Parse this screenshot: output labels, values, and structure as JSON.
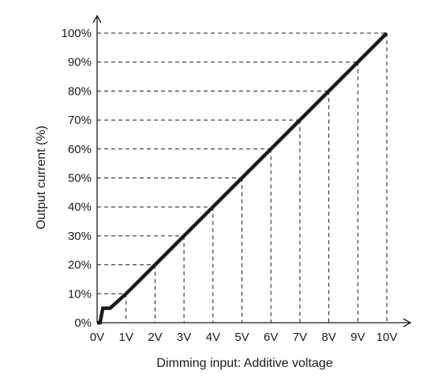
{
  "chart_data": {
    "type": "line",
    "xlabel": "Dimming input: Additive voltage",
    "ylabel": "Output current (%)",
    "x_ticks": [
      "0V",
      "1V",
      "2V",
      "3V",
      "4V",
      "5V",
      "6V",
      "7V",
      "8V",
      "9V",
      "10V"
    ],
    "y_ticks": [
      "0%",
      "10%",
      "20%",
      "30%",
      "40%",
      "50%",
      "60%",
      "70%",
      "80%",
      "90%",
      "100%"
    ],
    "xlim": [
      0,
      10
    ],
    "ylim": [
      0,
      100
    ],
    "grid": "dashed guide lines at each tick",
    "series": [
      {
        "x": [
          0,
          0.1,
          0.2,
          0.45,
          1,
          2,
          3,
          4,
          5,
          6,
          7,
          8,
          9,
          10
        ],
        "y": [
          0,
          0,
          5,
          5,
          10,
          20,
          30,
          40,
          50,
          60,
          70,
          80,
          90,
          100
        ],
        "color": "#1a1a1a"
      }
    ]
  }
}
